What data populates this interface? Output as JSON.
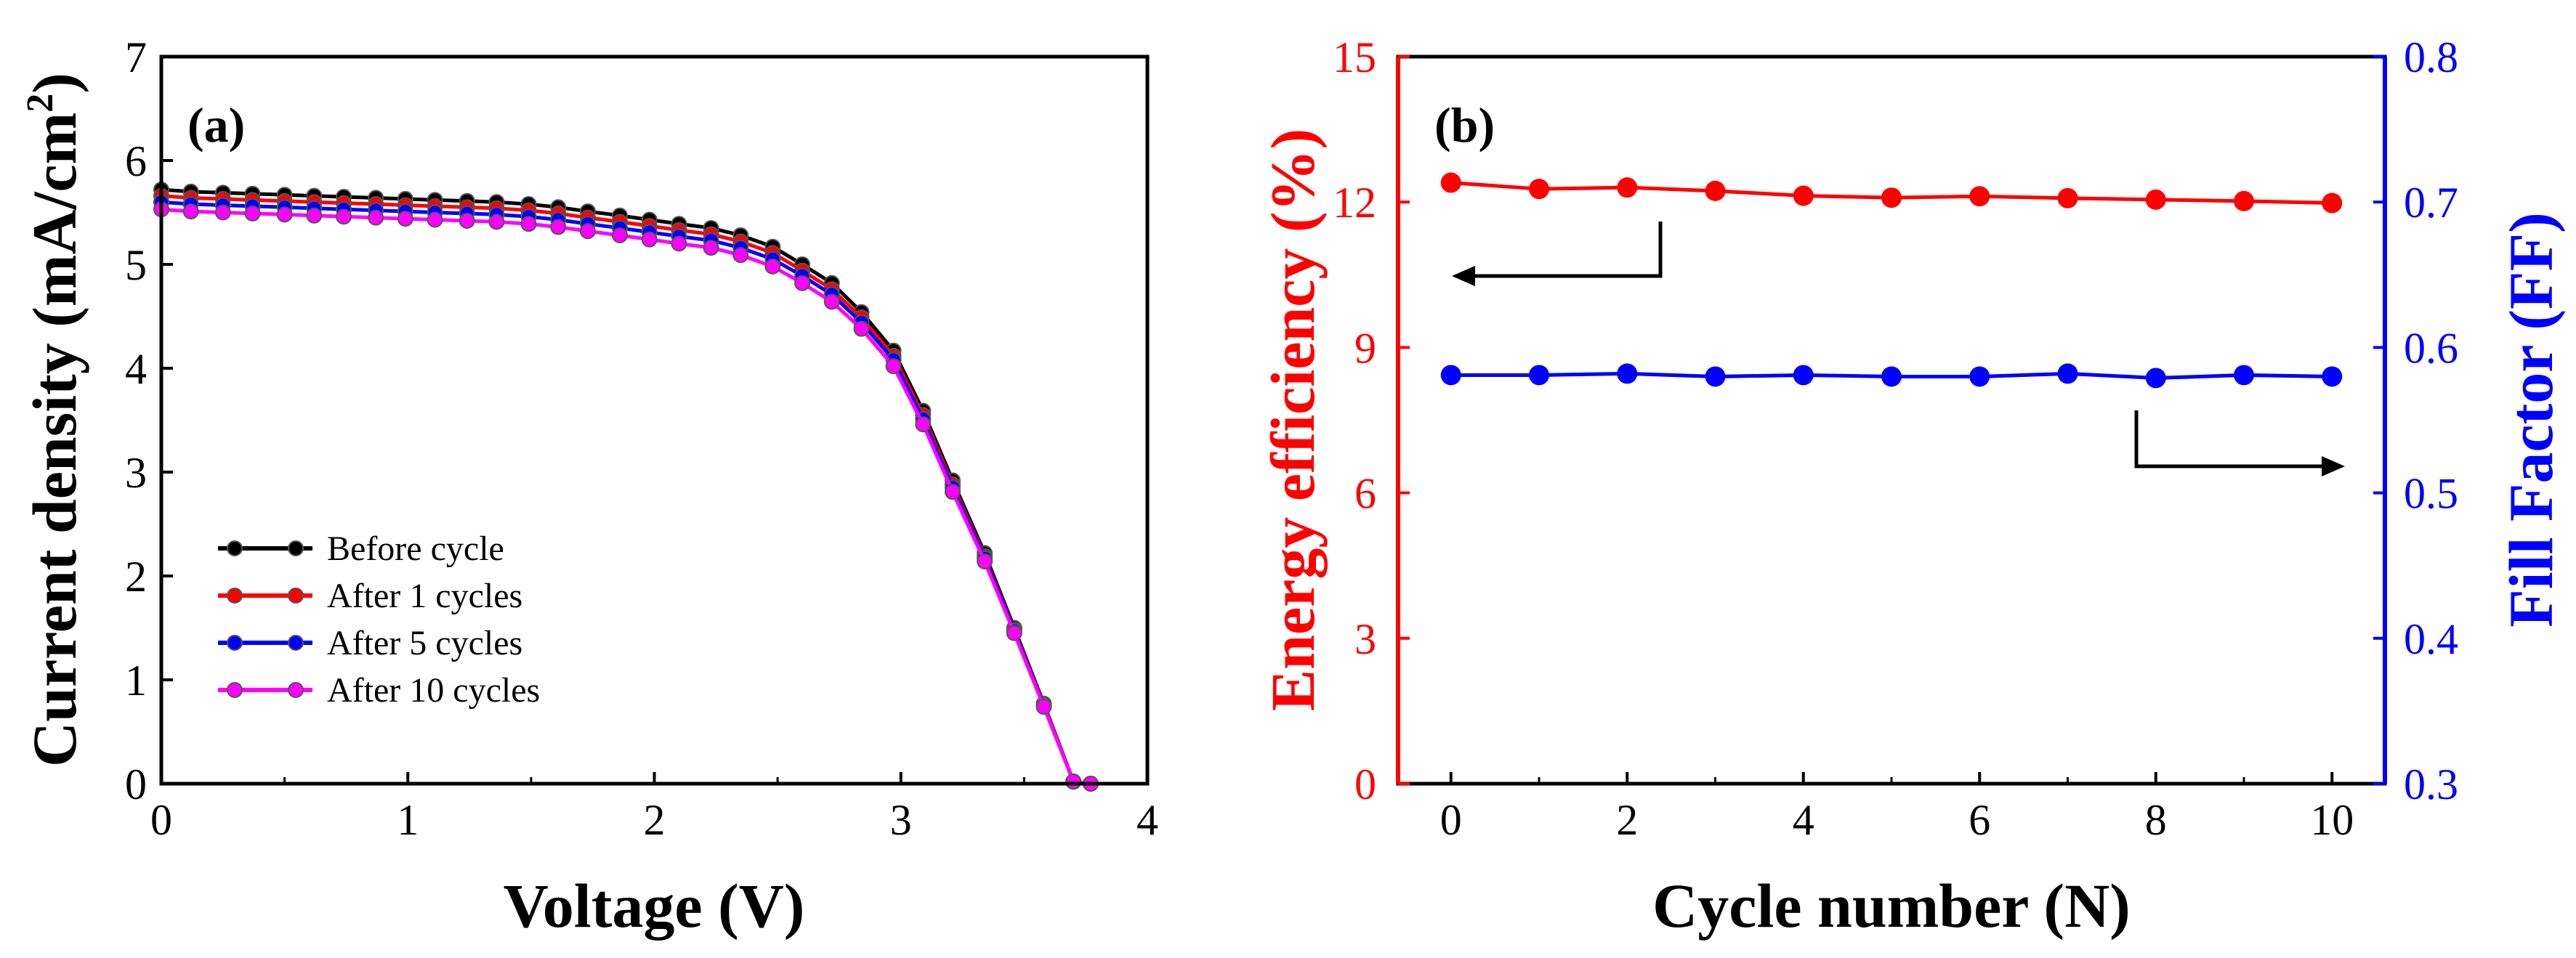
{
  "chart_data": [
    {
      "type": "line",
      "panel_label": "(a)",
      "xlabel": "Voltage (V)",
      "ylabel": "Current density (mA/cm",
      "ylabel_sup": "2",
      "ylabel_close": ")",
      "xlim": [
        0,
        4
      ],
      "ylim": [
        0,
        7
      ],
      "xticks": [
        "0",
        "1",
        "2",
        "3",
        "4"
      ],
      "yticks": [
        "0",
        "1",
        "2",
        "3",
        "4",
        "5",
        "6",
        "7"
      ],
      "legend_position": "lower-left",
      "x": [
        0,
        0.12,
        0.25,
        0.37,
        0.5,
        0.62,
        0.74,
        0.87,
        0.99,
        1.11,
        1.24,
        1.36,
        1.49,
        1.61,
        1.73,
        1.86,
        1.98,
        2.1,
        2.23,
        2.35,
        2.48,
        2.6,
        2.72,
        2.84,
        2.97,
        3.09,
        3.21,
        3.34,
        3.46,
        3.58,
        3.7,
        3.77
      ],
      "series": [
        {
          "name": "Before cycle",
          "color": "#000000",
          "values": [
            5.72,
            5.7,
            5.69,
            5.68,
            5.67,
            5.66,
            5.65,
            5.64,
            5.63,
            5.62,
            5.61,
            5.6,
            5.58,
            5.55,
            5.51,
            5.47,
            5.43,
            5.39,
            5.35,
            5.28,
            5.17,
            5.0,
            4.82,
            4.54,
            4.17,
            3.59,
            2.92,
            2.22,
            1.5,
            0.77,
            0.02,
            0.0
          ]
        },
        {
          "name": "After 1 cycles",
          "color": "#ff0000",
          "values": [
            5.66,
            5.64,
            5.63,
            5.62,
            5.61,
            5.6,
            5.59,
            5.58,
            5.57,
            5.56,
            5.55,
            5.54,
            5.52,
            5.49,
            5.45,
            5.41,
            5.37,
            5.33,
            5.29,
            5.22,
            5.11,
            4.94,
            4.76,
            4.49,
            4.12,
            3.55,
            2.88,
            2.19,
            1.48,
            0.76,
            0.02,
            0.0
          ]
        },
        {
          "name": "After 5 cycles",
          "color": "#0000ff",
          "values": [
            5.6,
            5.58,
            5.57,
            5.56,
            5.55,
            5.54,
            5.53,
            5.52,
            5.51,
            5.5,
            5.49,
            5.48,
            5.46,
            5.43,
            5.39,
            5.35,
            5.31,
            5.27,
            5.23,
            5.16,
            5.05,
            4.89,
            4.71,
            4.44,
            4.08,
            3.51,
            2.85,
            2.17,
            1.47,
            0.75,
            0.02,
            0.0
          ]
        },
        {
          "name": "After 10 cycles",
          "color": "#ff00ff",
          "values": [
            5.53,
            5.51,
            5.5,
            5.49,
            5.48,
            5.47,
            5.46,
            5.45,
            5.44,
            5.43,
            5.42,
            5.41,
            5.39,
            5.36,
            5.32,
            5.28,
            5.24,
            5.2,
            5.16,
            5.09,
            4.98,
            4.82,
            4.64,
            4.38,
            4.02,
            3.46,
            2.81,
            2.14,
            1.45,
            0.74,
            0.02,
            0.0
          ]
        }
      ]
    },
    {
      "type": "line",
      "panel_label": "(b)",
      "xlabel": "Cycle number (N)",
      "ylabel_left": "Energy efficiency (%)",
      "ylabel_right": "Fill Factor (FF)",
      "left_color": "#ff0000",
      "right_color": "#0000ff",
      "xlim": [
        -0.6,
        10.6
      ],
      "ylim_left": [
        0,
        15
      ],
      "ylim_right": [
        0.3,
        0.8
      ],
      "xticks": [
        "0",
        "2",
        "4",
        "6",
        "8",
        "10"
      ],
      "yticks_left": [
        "0",
        "3",
        "6",
        "9",
        "12",
        "15"
      ],
      "yticks_right": [
        "0.3",
        "0.4",
        "0.5",
        "0.6",
        "0.7",
        "0.8"
      ],
      "x": [
        0,
        1,
        2,
        3,
        4,
        5,
        6,
        7,
        8,
        9,
        10
      ],
      "series": [
        {
          "name": "Energy efficiency",
          "axis": "left",
          "color": "#ff0000",
          "values": [
            12.4,
            12.27,
            12.3,
            12.23,
            12.13,
            12.09,
            12.12,
            12.08,
            12.05,
            12.02,
            11.98
          ]
        },
        {
          "name": "Fill Factor",
          "axis": "right",
          "color": "#0000ff",
          "values": [
            0.581,
            0.581,
            0.582,
            0.58,
            0.581,
            0.58,
            0.58,
            0.582,
            0.579,
            0.581,
            0.58
          ]
        }
      ],
      "annotations": [
        "arrow pointing to left axis from efficiency series",
        "arrow pointing to right axis from fill factor series"
      ]
    }
  ]
}
